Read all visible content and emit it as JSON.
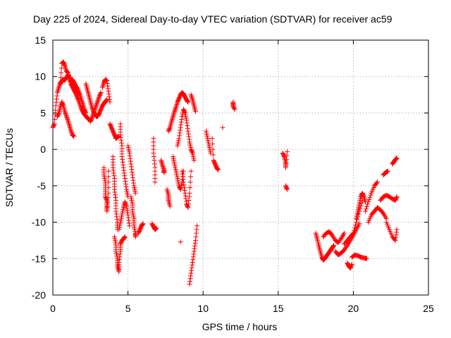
{
  "chart_data": {
    "type": "scatter",
    "title": "Day 225 of 2024, Sidereal Day-to-day VTEC variation (SDTVAR) for receiver ac59",
    "xlabel": "GPS time / hours",
    "ylabel": "SDTVAR / TECUs",
    "xlim": [
      0,
      25
    ],
    "ylim": [
      -20,
      15
    ],
    "xticks": [
      "0",
      "5",
      "10",
      "15",
      "20",
      "25"
    ],
    "yticks": [
      "-20",
      "-15",
      "-10",
      "-5",
      "0",
      "5",
      "10",
      "15"
    ],
    "grid": true,
    "marker": "+",
    "color": "#ff0000",
    "series": [
      {
        "name": "SDTVAR",
        "segments": [
          {
            "x": [
              0.0,
              0.1,
              0.2,
              0.3,
              0.4,
              0.5,
              0.6,
              0.7,
              0.8,
              0.9,
              1.0,
              1.1,
              1.2,
              1.3,
              1.4,
              1.5,
              1.6,
              1.7,
              1.8,
              1.9,
              2.0,
              2.1,
              2.2,
              2.3,
              2.4,
              2.5
            ],
            "y": [
              3.0,
              3.5,
              6.0,
              7.8,
              8.5,
              9.2,
              11.8,
              12.0,
              11.5,
              10.8,
              10.5,
              9.8,
              9.0,
              8.6,
              8.2,
              7.8,
              7.3,
              6.8,
              6.2,
              5.6,
              5.2,
              4.8,
              4.6,
              4.3,
              4.1,
              4.0
            ]
          },
          {
            "x": [
              0.3,
              0.4,
              0.5,
              0.6,
              0.7,
              0.8,
              0.9,
              1.0,
              1.1,
              1.2,
              1.3,
              1.4
            ],
            "y": [
              4.5,
              5.0,
              5.8,
              6.5,
              6.0,
              5.2,
              4.6,
              4.0,
              3.3,
              2.6,
              2.0,
              1.8
            ]
          },
          {
            "x": [
              0.5,
              0.6,
              0.7,
              0.8,
              0.9,
              1.0,
              1.1,
              1.2,
              1.3,
              1.4,
              1.5,
              1.6
            ],
            "y": [
              9.0,
              9.4,
              9.6,
              9.5,
              9.8,
              10.2,
              9.9,
              9.3,
              9.6,
              9.2,
              8.8,
              8.4
            ]
          },
          {
            "x": [
              1.6,
              1.7,
              1.8,
              1.9,
              2.0,
              2.1,
              2.2
            ],
            "y": [
              8.5,
              8.0,
              7.5,
              6.8,
              6.2,
              5.5,
              5.0
            ]
          },
          {
            "x": [
              2.2,
              2.3,
              2.4,
              2.5,
              2.6,
              2.7,
              2.8,
              2.9,
              3.0,
              3.1,
              3.2,
              3.3,
              3.4,
              3.5,
              3.6
            ],
            "y": [
              9.0,
              8.2,
              7.4,
              6.6,
              5.8,
              5.2,
              4.8,
              4.5,
              4.6,
              5.0,
              5.5,
              6.0,
              6.3,
              6.6,
              6.8
            ]
          },
          {
            "x": [
              2.5,
              2.6,
              2.7,
              2.8,
              2.9,
              3.0,
              3.1,
              3.2
            ],
            "y": [
              3.8,
              4.3,
              4.9,
              5.5,
              6.1,
              6.7,
              7.3,
              7.8
            ]
          },
          {
            "x": [
              3.3,
              3.4,
              3.5,
              3.6,
              3.7,
              3.8
            ],
            "y": [
              8.5,
              9.2,
              9.6,
              9.4,
              8.0,
              6.5
            ]
          },
          {
            "x": [
              3.4,
              3.4,
              3.5,
              3.5,
              3.5,
              3.6,
              3.6,
              3.6,
              3.7,
              3.7
            ],
            "y": [
              -2.5,
              -3.5,
              -4.5,
              -5.5,
              -6.5,
              -7.0,
              -7.8,
              -8.5,
              -6.0,
              -3.0
            ]
          },
          {
            "x": [
              3.8,
              3.9,
              4.0,
              4.1,
              4.2,
              4.3,
              4.4
            ],
            "y": [
              3.5,
              3.0,
              2.5,
              2.0,
              1.5,
              1.7,
              1.8
            ]
          },
          {
            "x": [
              4.0,
              4.0,
              4.1,
              4.1,
              4.2,
              4.2,
              4.3,
              4.3
            ],
            "y": [
              -1.0,
              -2.5,
              -4.0,
              -5.5,
              -7.0,
              -8.5,
              -10.0,
              -11.0
            ]
          },
          {
            "x": [
              4.1,
              4.2,
              4.2,
              4.3,
              4.3,
              4.4,
              4.4,
              4.5,
              4.5,
              4.6,
              4.7,
              4.8
            ],
            "y": [
              -12.0,
              -13.0,
              -14.0,
              -15.0,
              -16.0,
              -16.8,
              -15.5,
              -14.0,
              -13.0,
              -12.5,
              -12.3,
              -12.0
            ]
          },
          {
            "x": [
              4.4,
              4.5,
              4.6,
              4.7,
              4.8,
              4.9,
              5.0,
              5.1
            ],
            "y": [
              -11.0,
              -10.0,
              -9.0,
              -8.0,
              -7.2,
              -7.8,
              -9.0,
              -10.5
            ]
          },
          {
            "x": [
              4.5,
              4.5,
              4.6,
              4.6,
              4.7,
              4.8,
              4.9,
              5.0
            ],
            "y": [
              3.5,
              2.0,
              0.5,
              -1.0,
              -2.5,
              -4.0,
              -5.5,
              -6.5
            ]
          },
          {
            "x": [
              5.0,
              5.1,
              5.2,
              5.3,
              5.4,
              5.5
            ],
            "y": [
              0.5,
              -0.5,
              -2.0,
              -3.5,
              -5.0,
              -6.0
            ]
          },
          {
            "x": [
              5.2,
              5.3,
              5.3,
              5.4,
              5.4,
              5.5,
              5.5
            ],
            "y": [
              -6.5,
              -7.5,
              -8.5,
              -9.5,
              -10.5,
              -11.5,
              -12.0
            ]
          },
          {
            "x": [
              5.7,
              5.8,
              5.9,
              6.0
            ],
            "y": [
              -11.5,
              -11.0,
              -10.5,
              -10.2
            ]
          },
          {
            "x": [
              6.6,
              6.7,
              6.8,
              6.9
            ],
            "y": [
              -10.2,
              -10.6,
              -11.0,
              -10.8
            ]
          },
          {
            "x": [
              6.7,
              6.7,
              6.8,
              6.8
            ],
            "y": [
              1.5,
              -0.5,
              -2.5,
              -4.5
            ]
          },
          {
            "x": [
              7.2,
              7.3,
              7.4,
              7.4
            ],
            "y": [
              -1.5,
              -2.2,
              -2.8,
              -3.2
            ]
          },
          {
            "x": [
              7.6,
              7.7,
              7.7,
              7.8
            ],
            "y": [
              -5.5,
              -6.3,
              -7.0,
              -7.8
            ]
          },
          {
            "x": [
              7.7,
              7.8,
              7.9,
              8.0,
              8.1,
              8.2,
              8.3,
              8.4,
              8.5,
              8.6,
              8.7,
              8.8,
              8.9,
              9.0
            ],
            "y": [
              2.5,
              3.0,
              3.8,
              4.5,
              5.2,
              5.8,
              6.5,
              7.0,
              7.5,
              7.8,
              7.6,
              7.2,
              6.8,
              6.5
            ]
          },
          {
            "x": [
              8.0,
              8.1,
              8.2,
              8.3,
              8.4,
              8.5,
              8.6,
              8.7
            ],
            "y": [
              -1.0,
              -2.0,
              -3.0,
              -4.0,
              -5.0,
              -5.5,
              -4.5,
              -3.0
            ]
          },
          {
            "x": [
              8.3,
              8.4,
              8.5,
              8.6,
              8.7,
              8.8,
              8.9,
              9.0,
              9.1,
              9.2,
              9.3,
              9.4
            ],
            "y": [
              0.5,
              1.5,
              3.0,
              4.5,
              5.5,
              5.0,
              4.0,
              2.5,
              1.0,
              0.0,
              -0.5,
              -1.5
            ]
          },
          {
            "x": [
              8.6,
              8.7,
              8.8,
              8.9,
              9.0,
              9.1,
              9.2
            ],
            "y": [
              -3.0,
              -4.5,
              -6.0,
              -7.5,
              -8.0,
              -6.0,
              -3.0
            ]
          },
          {
            "x": [
              9.2,
              9.3,
              9.4,
              9.5
            ],
            "y": [
              7.5,
              6.8,
              6.0,
              5.2
            ]
          },
          {
            "x": [
              8.5
            ],
            "y": [
              -12.7
            ]
          },
          {
            "x": [
              9.1,
              9.2,
              9.3,
              9.4,
              9.5,
              9.6
            ],
            "y": [
              -18.5,
              -17.0,
              -15.5,
              -14.0,
              -12.5,
              -10.5
            ]
          },
          {
            "x": [
              10.2,
              10.3,
              10.4,
              10.5
            ],
            "y": [
              2.5,
              1.5,
              0.5,
              -0.5
            ]
          },
          {
            "x": [
              10.6,
              10.7,
              10.8,
              10.9,
              11.0
            ],
            "y": [
              1.5,
              -1.5,
              -2.0,
              -2.5,
              -2.8
            ]
          },
          {
            "x": [
              11.3
            ],
            "y": [
              3.0
            ]
          },
          {
            "x": [
              12.0,
              12.0,
              12.1
            ],
            "y": [
              6.5,
              6.0,
              5.5
            ]
          },
          {
            "x": [
              15.3,
              15.4,
              15.5,
              15.5,
              15.6
            ],
            "y": [
              -0.5,
              -1.0,
              -1.8,
              -2.5,
              -0.3
            ]
          },
          {
            "x": [
              15.5,
              15.6
            ],
            "y": [
              -5.0,
              -5.5
            ]
          },
          {
            "x": [
              17.5,
              17.6,
              17.7,
              17.8,
              17.9,
              18.0,
              18.1,
              18.2,
              18.3,
              18.4,
              18.5,
              18.6,
              18.7
            ],
            "y": [
              -11.5,
              -12.3,
              -13.2,
              -14.0,
              -14.8,
              -15.2,
              -15.0,
              -14.7,
              -14.4,
              -14.1,
              -13.8,
              -13.5,
              -13.2
            ]
          },
          {
            "x": [
              18.0,
              18.2,
              18.4,
              18.6,
              18.8,
              19.0,
              19.2,
              19.4
            ],
            "y": [
              -12.0,
              -11.5,
              -11.3,
              -11.8,
              -12.5,
              -12.8,
              -12.2,
              -11.5
            ]
          },
          {
            "x": [
              18.8,
              19.0,
              19.2,
              19.4,
              19.6,
              19.8,
              20.0,
              20.2,
              20.4
            ],
            "y": [
              -14.0,
              -14.5,
              -14.2,
              -13.8,
              -13.2,
              -12.5,
              -11.8,
              -11.0,
              -10.2
            ]
          },
          {
            "x": [
              19.6,
              19.7,
              19.8,
              19.9
            ],
            "y": [
              -15.6,
              -16.0,
              -16.3,
              -15.8
            ]
          },
          {
            "x": [
              19.4,
              19.6,
              19.8,
              20.0,
              20.2,
              20.4,
              20.6
            ],
            "y": [
              -13.0,
              -12.5,
              -12.0,
              -11.5,
              -10.0,
              -8.5,
              -7.0
            ]
          },
          {
            "x": [
              19.9,
              20.1,
              20.3,
              20.5,
              20.7,
              20.9
            ],
            "y": [
              -14.8,
              -14.5,
              -14.6,
              -14.8,
              -14.9,
              -15.0
            ]
          },
          {
            "x": [
              20.2,
              20.3,
              20.4,
              20.5,
              20.6,
              20.7,
              20.8
            ],
            "y": [
              -9.5,
              -8.5,
              -7.5,
              -6.5,
              -6.0,
              -6.5,
              -7.2
            ]
          },
          {
            "x": [
              20.8,
              21.0,
              21.2,
              21.4,
              21.6
            ],
            "y": [
              -8.5,
              -7.2,
              -6.0,
              -5.0,
              -4.5
            ]
          },
          {
            "x": [
              21.0,
              21.2,
              21.4,
              21.6,
              21.8,
              22.0,
              22.2
            ],
            "y": [
              -10.0,
              -9.0,
              -8.5,
              -8.0,
              -8.3,
              -8.8,
              -9.5
            ]
          },
          {
            "x": [
              21.8,
              22.0,
              22.2,
              22.4,
              22.6,
              22.8,
              22.9
            ],
            "y": [
              -7.0,
              -6.5,
              -6.3,
              -6.5,
              -6.8,
              -7.0,
              -6.5
            ]
          },
          {
            "x": [
              22.0,
              22.1,
              22.2,
              22.3
            ],
            "y": [
              -3.5,
              -3.3,
              -3.1,
              -3.0
            ]
          },
          {
            "x": [
              22.2,
              22.4,
              22.6,
              22.8,
              22.9
            ],
            "y": [
              -10.0,
              -11.0,
              -12.0,
              -12.5,
              -11.0
            ]
          },
          {
            "x": [
              22.6,
              22.7,
              22.8,
              22.9
            ],
            "y": [
              -2.0,
              -1.7,
              -1.4,
              -1.2
            ]
          }
        ]
      }
    ]
  }
}
